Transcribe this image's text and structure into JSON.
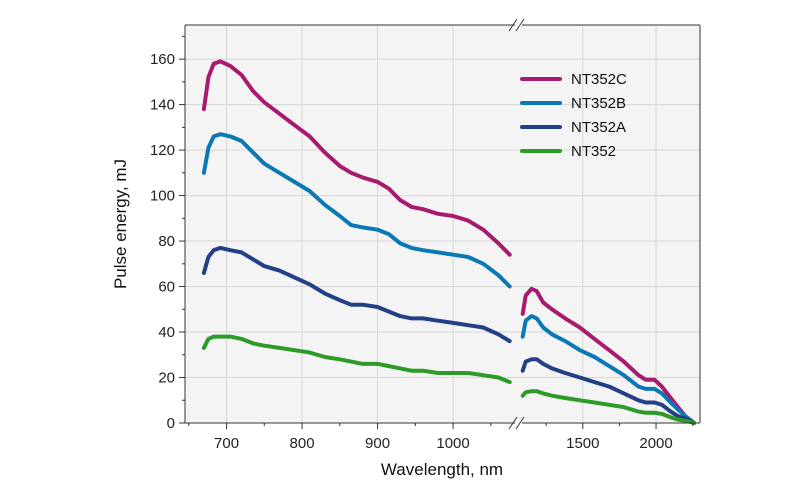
{
  "chart_data": {
    "type": "line",
    "xlabel": "Wavelength, nm",
    "ylabel": "Pulse energy, mJ",
    "ylim": [
      0,
      175
    ],
    "y_ticks": [
      0,
      20,
      40,
      60,
      80,
      100,
      120,
      140,
      160
    ],
    "broken_x_axis": true,
    "x_segments": [
      {
        "xlim": [
          645,
          1082
        ],
        "ticks": [
          700,
          800,
          900,
          1000
        ]
      },
      {
        "xlim": [
          1085,
          2300
        ],
        "ticks": [
          1500,
          2000
        ]
      }
    ],
    "grid": true,
    "legend_position": "top-right",
    "series": [
      {
        "name": "NT352C",
        "color": "#a71b6f",
        "segments": [
          [
            [
              670,
              138
            ],
            [
              676,
              152
            ],
            [
              683,
              158
            ],
            [
              692,
              159
            ],
            [
              705,
              157
            ],
            [
              720,
              153
            ],
            [
              735,
              146
            ],
            [
              750,
              141
            ],
            [
              770,
              136
            ],
            [
              790,
              131
            ],
            [
              810,
              126
            ],
            [
              830,
              119
            ],
            [
              850,
              113
            ],
            [
              865,
              110
            ],
            [
              880,
              108
            ],
            [
              900,
              106
            ],
            [
              915,
              103
            ],
            [
              930,
              98
            ],
            [
              945,
              95
            ],
            [
              960,
              94
            ],
            [
              980,
              92
            ],
            [
              1000,
              91
            ],
            [
              1020,
              89
            ],
            [
              1040,
              85
            ],
            [
              1060,
              79
            ],
            [
              1075,
              74
            ]
          ],
          [
            [
              1090,
              48
            ],
            [
              1110,
              56
            ],
            [
              1150,
              59
            ],
            [
              1185,
              58
            ],
            [
              1230,
              53
            ],
            [
              1290,
              50
            ],
            [
              1380,
              46
            ],
            [
              1480,
              42
            ],
            [
              1580,
              37
            ],
            [
              1680,
              32
            ],
            [
              1780,
              27
            ],
            [
              1880,
              21
            ],
            [
              1930,
              19
            ],
            [
              1990,
              19
            ],
            [
              2040,
              16
            ],
            [
              2100,
              11
            ],
            [
              2150,
              7
            ],
            [
              2200,
              3
            ],
            [
              2260,
              0
            ]
          ]
        ]
      },
      {
        "name": "NT352B",
        "color": "#0a78b4",
        "segments": [
          [
            [
              670,
              110
            ],
            [
              676,
              121
            ],
            [
              683,
              126
            ],
            [
              692,
              127
            ],
            [
              705,
              126
            ],
            [
              720,
              124
            ],
            [
              735,
              119
            ],
            [
              750,
              114
            ],
            [
              770,
              110
            ],
            [
              790,
              106
            ],
            [
              810,
              102
            ],
            [
              830,
              96
            ],
            [
              850,
              91
            ],
            [
              865,
              87
            ],
            [
              880,
              86
            ],
            [
              900,
              85
            ],
            [
              915,
              83
            ],
            [
              930,
              79
            ],
            [
              945,
              77
            ],
            [
              960,
              76
            ],
            [
              980,
              75
            ],
            [
              1000,
              74
            ],
            [
              1020,
              73
            ],
            [
              1040,
              70
            ],
            [
              1060,
              65
            ],
            [
              1075,
              60
            ]
          ],
          [
            [
              1090,
              38
            ],
            [
              1110,
              45
            ],
            [
              1150,
              47
            ],
            [
              1185,
              46
            ],
            [
              1230,
              42
            ],
            [
              1290,
              39
            ],
            [
              1380,
              36
            ],
            [
              1480,
              32
            ],
            [
              1580,
              29
            ],
            [
              1680,
              25
            ],
            [
              1780,
              21
            ],
            [
              1880,
              16
            ],
            [
              1930,
              15
            ],
            [
              1990,
              15
            ],
            [
              2040,
              13
            ],
            [
              2100,
              9
            ],
            [
              2150,
              6
            ],
            [
              2200,
              3
            ],
            [
              2260,
              0
            ]
          ]
        ]
      },
      {
        "name": "NT352A",
        "color": "#233f86",
        "segments": [
          [
            [
              670,
              66
            ],
            [
              676,
              73
            ],
            [
              683,
              76
            ],
            [
              692,
              77
            ],
            [
              705,
              76
            ],
            [
              720,
              75
            ],
            [
              735,
              72
            ],
            [
              750,
              69
            ],
            [
              770,
              67
            ],
            [
              790,
              64
            ],
            [
              810,
              61
            ],
            [
              830,
              57
            ],
            [
              850,
              54
            ],
            [
              865,
              52
            ],
            [
              880,
              52
            ],
            [
              900,
              51
            ],
            [
              915,
              49
            ],
            [
              930,
              47
            ],
            [
              945,
              46
            ],
            [
              960,
              46
            ],
            [
              980,
              45
            ],
            [
              1000,
              44
            ],
            [
              1020,
              43
            ],
            [
              1040,
              42
            ],
            [
              1060,
              39
            ],
            [
              1075,
              36
            ]
          ],
          [
            [
              1090,
              23
            ],
            [
              1110,
              27
            ],
            [
              1150,
              28
            ],
            [
              1185,
              28
            ],
            [
              1230,
              26
            ],
            [
              1290,
              24
            ],
            [
              1380,
              22
            ],
            [
              1480,
              20
            ],
            [
              1580,
              18
            ],
            [
              1680,
              16
            ],
            [
              1780,
              13
            ],
            [
              1880,
              10
            ],
            [
              1930,
              9
            ],
            [
              1990,
              9
            ],
            [
              2040,
              8
            ],
            [
              2100,
              5
            ],
            [
              2150,
              3
            ],
            [
              2200,
              2
            ],
            [
              2260,
              0
            ]
          ]
        ]
      },
      {
        "name": "NT352",
        "color": "#2d9b27",
        "segments": [
          [
            [
              670,
              33
            ],
            [
              676,
              37
            ],
            [
              683,
              38
            ],
            [
              692,
              38
            ],
            [
              705,
              38
            ],
            [
              720,
              37
            ],
            [
              735,
              35
            ],
            [
              750,
              34
            ],
            [
              770,
              33
            ],
            [
              790,
              32
            ],
            [
              810,
              31
            ],
            [
              830,
              29
            ],
            [
              850,
              28
            ],
            [
              865,
              27
            ],
            [
              880,
              26
            ],
            [
              900,
              26
            ],
            [
              915,
              25
            ],
            [
              930,
              24
            ],
            [
              945,
              23
            ],
            [
              960,
              23
            ],
            [
              980,
              22
            ],
            [
              1000,
              22
            ],
            [
              1020,
              22
            ],
            [
              1040,
              21
            ],
            [
              1060,
              20
            ],
            [
              1075,
              18
            ]
          ],
          [
            [
              1090,
              12
            ],
            [
              1110,
              13.5
            ],
            [
              1150,
              14
            ],
            [
              1185,
              14
            ],
            [
              1230,
              13
            ],
            [
              1290,
              12
            ],
            [
              1380,
              11
            ],
            [
              1480,
              10
            ],
            [
              1580,
              9
            ],
            [
              1680,
              8
            ],
            [
              1780,
              7
            ],
            [
              1880,
              5
            ],
            [
              1930,
              4.5
            ],
            [
              1990,
              4.5
            ],
            [
              2040,
              4
            ],
            [
              2100,
              2.5
            ],
            [
              2150,
              1.5
            ],
            [
              2200,
              1
            ],
            [
              2260,
              0
            ]
          ]
        ]
      }
    ]
  }
}
